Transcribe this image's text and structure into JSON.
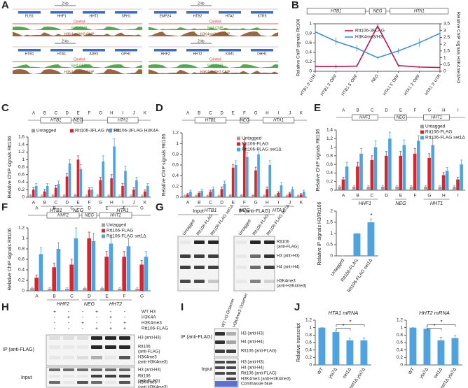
{
  "panel_labels": [
    "A",
    "B",
    "C",
    "D",
    "E",
    "F",
    "G",
    "H",
    "I",
    "J"
  ],
  "browser": [
    {
      "scale": "2 kb",
      "genes": [
        "FLR1",
        "HHF1",
        "HHT1",
        "SPH1"
      ],
      "tracks": [
        "Control",
        "Set1 ChIP",
        "H3K4me3/H3 ChIP"
      ]
    },
    {
      "scale": "2 kb",
      "genes": [
        "EMP24",
        "HTB2",
        "HTA2",
        "KTR5"
      ],
      "tracks": [
        "Control",
        "Set1 ChIP",
        "H3K4me3/H3 ChIP"
      ]
    },
    {
      "scale": "2 kb",
      "genes": [
        "HTB1",
        "HTA1",
        "ADR1",
        "GPH1"
      ],
      "tracks": [
        "Control",
        "Set1 ChIP",
        "H3K4me3/H3 ChIP"
      ]
    },
    {
      "scale": "2 kb",
      "genes": [
        "HHF2",
        "HHT2",
        "IOM1",
        "DHH1"
      ],
      "tracks": [
        "Control",
        "Set1 ChIP",
        "H3K4me3/H3 ChIP"
      ]
    }
  ],
  "chart_data": [
    {
      "type": "line",
      "genes": [
        "HTB1",
        "NEG",
        "HTA1"
      ],
      "categories": [
        "HTB1 3' UTR",
        "HTB1 3' ORF",
        "HTB1 5' ORF",
        "NEG",
        "HTA1 5' ORF",
        "HTA1 3' ORF",
        "HTA1 3' UTR"
      ],
      "series": [
        {
          "name": "Rtt106-3FLAG",
          "color": "#c0184d",
          "values": [
            0.1,
            0.1,
            0.11,
            0.95,
            0.12,
            0.09,
            0.08
          ],
          "errors": [
            0.03,
            0.04,
            0.03,
            0.05,
            0.03,
            0.02,
            0.02
          ]
        },
        {
          "name": "H3K4me3/H3",
          "color": "#3c8fdc",
          "axis": "y2",
          "values": [
            2.9,
            2.2,
            1.7,
            1.0,
            1.5,
            2.1,
            2.8
          ],
          "errors": [
            0.2,
            0.3,
            0.25,
            0.1,
            0.2,
            0.3,
            0.2
          ]
        }
      ],
      "ylabel": "Relative ChIP signals Rtt106",
      "y2label": "Relative ChIP signals H3K4me3/H3",
      "ylim": [
        0,
        1
      ],
      "yticks": [
        0,
        0.2,
        0.4,
        0.6,
        0.8,
        1
      ],
      "y2lim": [
        0,
        3.5
      ],
      "y2ticks": [
        0,
        0.5,
        1,
        1.5,
        2,
        2.5,
        3,
        3.5
      ]
    },
    {
      "type": "bar",
      "genes": [
        "HTB1",
        "NEG",
        "HTA1"
      ],
      "categories": [
        "A",
        "B",
        "C",
        "D",
        "E",
        "F",
        "G",
        "H",
        "I",
        "J",
        "K"
      ],
      "series": [
        {
          "name": "Untagged",
          "color": "#9e9e9e",
          "values": [
            0.05,
            0.04,
            0.05,
            0.05,
            0.06,
            0.04,
            0.05,
            0.05,
            0.04,
            0.04,
            0.04
          ],
          "errors": [
            0.02,
            0.02,
            0.02,
            0.02,
            0.02,
            0.02,
            0.02,
            0.02,
            0.02,
            0.02,
            0.02
          ]
        },
        {
          "name": "Rtt106-3FLAG WT H3",
          "color": "#d7262b",
          "values": [
            0.2,
            0.15,
            0.25,
            0.55,
            1.0,
            0.2,
            0.45,
            0.5,
            0.3,
            0.2,
            0.15
          ],
          "errors": [
            0.05,
            0.05,
            0.06,
            0.08,
            0.1,
            0.05,
            0.08,
            0.1,
            0.06,
            0.05,
            0.04
          ]
        },
        {
          "name": "Rtt106-3FLAG H3K4A",
          "color": "#4fa3e0",
          "values": [
            0.3,
            0.3,
            0.35,
            0.9,
            0.75,
            0.2,
            0.95,
            1.35,
            0.7,
            0.45,
            0.3
          ],
          "errors": [
            0.06,
            0.06,
            0.08,
            0.1,
            0.12,
            0.05,
            0.15,
            0.2,
            0.12,
            0.08,
            0.06
          ]
        }
      ],
      "ylabel": "Relative ChIP signals Rtt106",
      "ylim": [
        0,
        1.6
      ],
      "yticks": [
        0,
        0.2,
        0.4,
        0.6,
        0.8,
        1,
        1.2,
        1.4,
        1.6
      ]
    },
    {
      "type": "bar",
      "genes": [
        "HTB1",
        "NEG",
        "HTA1"
      ],
      "categories": [
        "A",
        "B",
        "C",
        "D",
        "E",
        "F",
        "G",
        "H",
        "I",
        "J",
        "K"
      ],
      "series": [
        {
          "name": "Untagged",
          "color": "#9e9e9e",
          "values": [
            0.03,
            0.03,
            0.03,
            0.03,
            0.04,
            0.04,
            0.04,
            0.03,
            0.03,
            0.03,
            0.03
          ],
          "errors": [
            0.01,
            0.01,
            0.01,
            0.01,
            0.01,
            0.01,
            0.01,
            0.01,
            0.01,
            0.01,
            0.01
          ]
        },
        {
          "name": "Rtt106-FLAG",
          "color": "#d7262b",
          "values": [
            0.05,
            0.08,
            0.1,
            0.15,
            0.55,
            1.0,
            0.5,
            0.15,
            0.08,
            0.07,
            0.05
          ],
          "errors": [
            0.02,
            0.02,
            0.03,
            0.04,
            0.06,
            0.08,
            0.06,
            0.04,
            0.02,
            0.02,
            0.02
          ]
        },
        {
          "name": "Rtt106-FLAG set1Δ",
          "color": "#4fa3e0",
          "values": [
            0.1,
            0.12,
            0.15,
            0.25,
            0.6,
            0.75,
            0.8,
            0.6,
            0.22,
            0.15,
            0.1
          ],
          "errors": [
            0.03,
            0.03,
            0.04,
            0.05,
            0.08,
            0.08,
            0.1,
            0.08,
            0.05,
            0.04,
            0.03
          ]
        }
      ],
      "ylabel": "Relative ChIP signals Rtt106",
      "ylim": [
        0,
        1.2
      ],
      "yticks": [
        0,
        0.2,
        0.4,
        0.6,
        0.8,
        1,
        1.2
      ]
    },
    {
      "type": "bar",
      "genes": [
        "HHF1",
        "NEG",
        "HHT1"
      ],
      "categories": [
        "A",
        "B",
        "C",
        "D",
        "E",
        "F",
        "G",
        "H",
        "I"
      ],
      "series": [
        {
          "name": "Untagged",
          "color": "#9e9e9e",
          "values": [
            0.08,
            0.08,
            0.08,
            0.08,
            0.08,
            0.08,
            0.08,
            0.08,
            0.08
          ],
          "errors": [
            0.03,
            0.03,
            0.03,
            0.03,
            0.03,
            0.03,
            0.03,
            0.03,
            0.03
          ]
        },
        {
          "name": "Rtt106-FLAG",
          "color": "#d7262b",
          "values": [
            0.25,
            0.55,
            0.7,
            0.8,
            0.8,
            0.85,
            0.75,
            0.35,
            0.25
          ],
          "errors": [
            0.05,
            0.1,
            0.1,
            0.1,
            0.1,
            0.12,
            0.1,
            0.06,
            0.05
          ]
        },
        {
          "name": "Rtt106-FLAG set1Δ",
          "color": "#4fa3e0",
          "values": [
            0.55,
            0.85,
            1.0,
            1.2,
            1.05,
            1.15,
            1.05,
            0.45,
            0.6
          ],
          "errors": [
            0.1,
            0.12,
            0.15,
            0.15,
            0.12,
            0.12,
            0.15,
            0.08,
            0.1
          ]
        }
      ],
      "ylabel": "Relative ChIP signals Rtt106",
      "ylim": [
        0,
        1.4
      ],
      "yticks": [
        0,
        0.2,
        0.4,
        0.6,
        0.8,
        1,
        1.2,
        1.4
      ]
    },
    {
      "type": "bar",
      "genes": [
        "HHF2",
        "NEG",
        "HHT2"
      ],
      "categories": [
        "A",
        "B",
        "C",
        "D",
        "E",
        "F",
        "G"
      ],
      "series": [
        {
          "name": "Untagged",
          "color": "#9e9e9e",
          "values": [
            0.05,
            0.04,
            0.04,
            0.05,
            0.05,
            0.04,
            0.04
          ],
          "errors": [
            0.02,
            0.02,
            0.02,
            0.02,
            0.02,
            0.02,
            0.02
          ]
        },
        {
          "name": "Rtt106-FLAG",
          "color": "#d7262b",
          "values": [
            0.25,
            0.45,
            0.5,
            1.0,
            0.65,
            0.65,
            0.5
          ],
          "errors": [
            0.05,
            0.08,
            0.1,
            0.12,
            0.1,
            0.1,
            0.08
          ]
        },
        {
          "name": "Rtt106-FLAG set1Δ",
          "color": "#4fa3e0",
          "values": [
            0.7,
            0.8,
            1.0,
            0.95,
            0.9,
            0.85,
            0.65
          ],
          "errors": [
            0.12,
            0.12,
            0.2,
            0.15,
            0.12,
            0.15,
            0.1
          ]
        }
      ],
      "ylabel": "Relative ChIP signals Rtt106",
      "ylim": [
        0,
        1.2
      ],
      "yticks": [
        0,
        0.2,
        0.4,
        0.6,
        0.8,
        1,
        1.2
      ]
    },
    {
      "type": "bar",
      "categories": [
        "Untagged",
        "Rtt106-FLAG",
        "Rtt106-FLAG set1Δ"
      ],
      "values": [
        0,
        1,
        1.5
      ],
      "errors": [
        0,
        0,
        0.15
      ],
      "color": "#4fa3e0",
      "ylabel": "Relative IP signals H3/Rtt106",
      "ylim": [
        0,
        2
      ],
      "yticks": [
        0,
        0.5,
        1,
        1.5,
        2
      ],
      "annotations": [
        "*"
      ]
    },
    {
      "type": "bar",
      "title": "HTA1 mRNA",
      "categories": [
        "WT",
        "yta7Δ",
        "set1Δ",
        "set1Δ yta7Δ"
      ],
      "values": [
        1,
        0.88,
        0.66,
        0.66
      ],
      "errors": [
        0,
        0.04,
        0.06,
        0.07
      ],
      "color": "#4fa3e0",
      "ylabel": "Relative transcript",
      "ylim": [
        0,
        1.2
      ],
      "yticks": [
        0,
        0.2,
        0.4,
        0.6,
        0.8,
        1,
        1.2
      ],
      "annotations": [
        "*",
        "*"
      ]
    },
    {
      "type": "bar",
      "title": "HHT2 mRNA",
      "categories": [
        "WT",
        "yta7Δ",
        "set1Δ",
        "set1Δ yta7Δ"
      ],
      "values": [
        1,
        0.97,
        0.66,
        0.72
      ],
      "errors": [
        0,
        0.06,
        0.08,
        0.07
      ],
      "color": "#4fa3e0",
      "ylim": [
        0,
        1.2
      ],
      "yticks": [
        0,
        0.2,
        0.4,
        0.6,
        0.8,
        1,
        1.2
      ],
      "annotations": [
        "*",
        "*"
      ]
    }
  ],
  "blots": {
    "G": {
      "sections": [
        "Input",
        "IP (anti-FLAG)"
      ],
      "lanes": [
        "Untagged",
        "Rtt106-FLAG",
        "Rtt106-FLAG set1Δ"
      ],
      "bands": [
        [
          "Rtt106",
          "(anti-FLAG)"
        ],
        [
          "H3 (anti-H3)"
        ],
        [
          "H4 (anti-H4)"
        ],
        [
          "H3K4me3",
          "(anti-H3K4me3)"
        ]
      ]
    },
    "H": {
      "conditions": [
        "WT H3",
        "H3K4A",
        "H3K4me3",
        "Rtt106-FLAG"
      ],
      "signs": [
        [
          "+",
          "-",
          "-",
          "+",
          "-",
          "-"
        ],
        [
          "-",
          "+",
          "-",
          "-",
          "+",
          "-"
        ],
        [
          "-",
          "-",
          "+",
          "-",
          "-",
          "+"
        ],
        [
          "-",
          "-",
          "-",
          "+",
          "+",
          "+"
        ]
      ],
      "sections": [
        "IP (anti-FLAG)",
        "Input"
      ],
      "ip_bands": [
        [
          "H3 (anti-H3)"
        ],
        [
          "Rtt106",
          "(anti-FLAG)"
        ],
        [
          "H3K4me3",
          "(anti-H3K4me3)"
        ]
      ],
      "input_bands": [
        [
          "H3 (anti-H3)"
        ],
        [
          "Rtt106",
          "(anti-FLAG)"
        ],
        [
          "H3K4me3",
          "(anti-H3K4me3)"
        ]
      ]
    },
    "I": {
      "lanes": [
        "WT H3 Octamer",
        "H3K4me3 Octamer"
      ],
      "sections": [
        "IP (anti-FLAG)",
        "Input"
      ],
      "ip_bands": [
        "H3 (anti-H3)",
        "H4 (anti-H4)",
        "Rtt106 (anti-FLAG)"
      ],
      "input_bands": [
        "H3 (anti-H3)",
        "H4 (anti-H4)",
        "Rtt106 (anti-FLAG)",
        "H3K4me3 (anti-H3K4me3)",
        "Commassie blue"
      ]
    }
  }
}
